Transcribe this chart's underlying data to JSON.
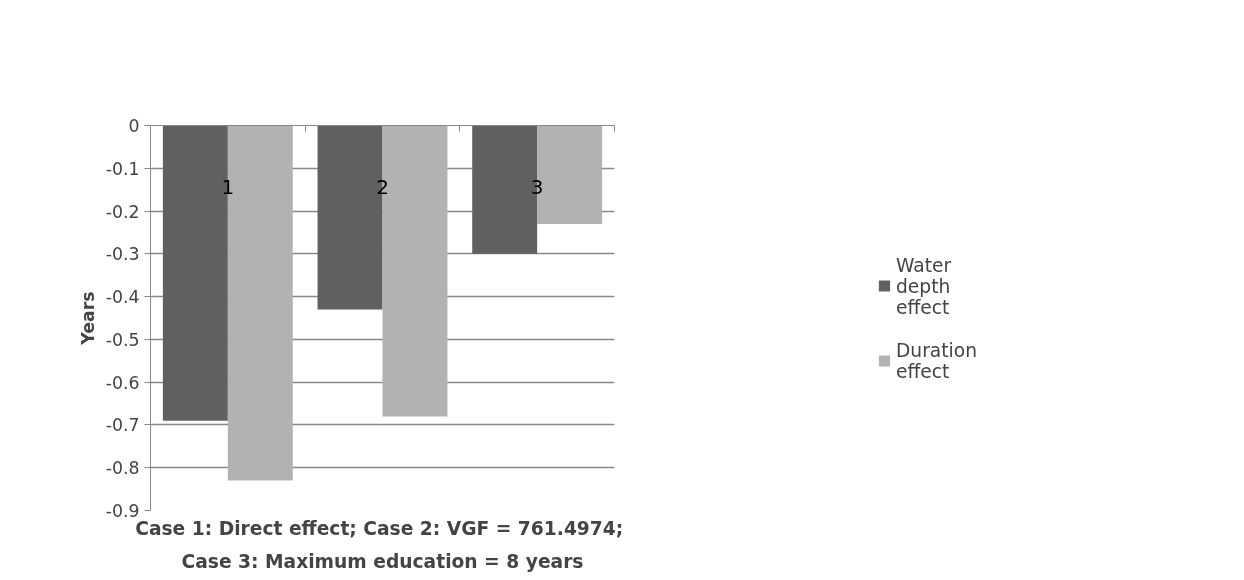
{
  "chart_data": {
    "type": "bar",
    "xlabel": "Case 1: Direct effect;  Case 2: VGF = 761.4974;\nCase 3: Maximum education = 8 years",
    "ylabel": "Years",
    "categories": [
      "1",
      "2",
      "3"
    ],
    "series": [
      {
        "name": "Water depth effect",
        "color": "#606060",
        "values": [
          -0.69,
          -0.43,
          -0.3
        ]
      },
      {
        "name": "Duration effect",
        "color": "#b2b2b2",
        "values": [
          -0.83,
          -0.68,
          -0.23
        ]
      }
    ],
    "ylim": [
      -0.9,
      0
    ],
    "yticks": [
      0,
      -0.1,
      -0.2,
      -0.3,
      -0.4,
      -0.5,
      -0.6,
      -0.7,
      -0.8,
      -0.9
    ],
    "grid": "y",
    "legend": "right"
  }
}
